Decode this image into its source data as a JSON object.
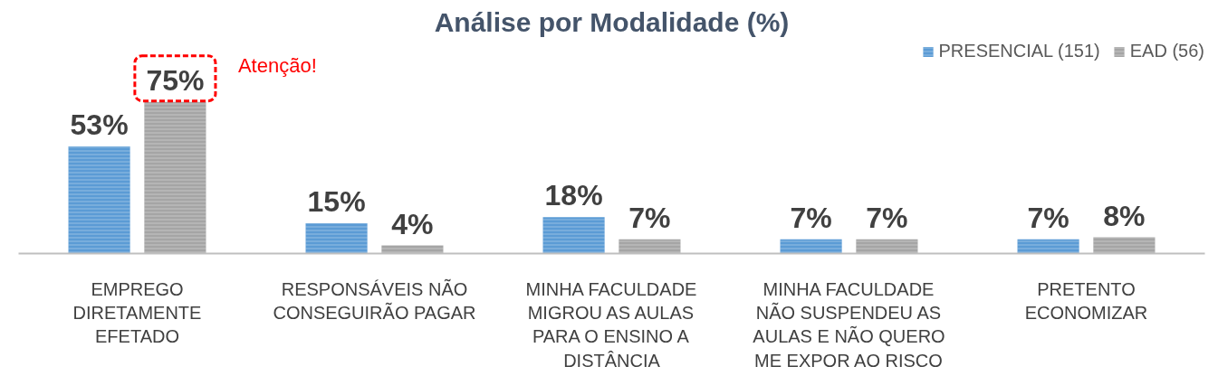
{
  "chart_data": {
    "type": "bar",
    "title": "Análise por Modalidade (%)",
    "categories": [
      "EMPREGO\nDIRETAMENTE\nEFETADO",
      "RESPONSÁVEIS NÃO\nCONSEGUIRÃO PAGAR",
      "MINHA FACULDADE\nMIGROU AS AULAS\nPARA O ENSINO A\nDISTÂNCIA",
      "MINHA FACULDADE\nNÃO SUSPENDEU AS\nAULAS E NÃO QUERO\nME EXPOR AO RISCO",
      "PRETENTO\nECONOMIZAR"
    ],
    "series": [
      {
        "name": "PRESENCIAL (151)",
        "color": "#5b9bd5",
        "values": [
          53,
          15,
          18,
          7,
          7
        ],
        "value_labels": [
          "53%",
          "15%",
          "18%",
          "7%",
          "7%"
        ]
      },
      {
        "name": "EAD (56)",
        "color": "#a5a5a5",
        "values": [
          75,
          4,
          7,
          7,
          8
        ],
        "value_labels": [
          "75%",
          "4%",
          "7%",
          "7%",
          "8%"
        ]
      }
    ],
    "annotations": [
      "Atenção!"
    ],
    "legend": "top right",
    "grid": false
  }
}
